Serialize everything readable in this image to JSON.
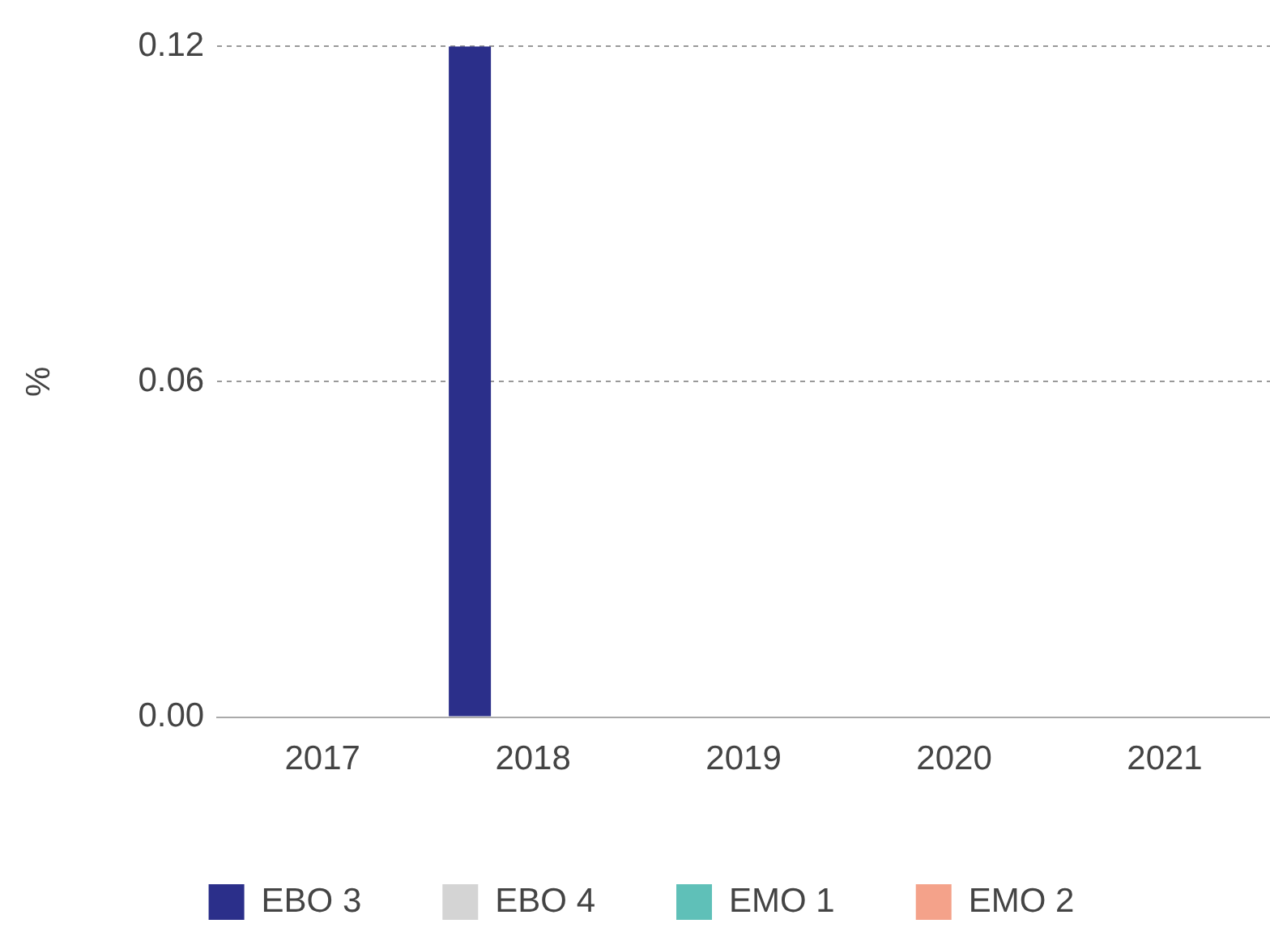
{
  "chart_data": {
    "type": "bar",
    "ylabel": "%",
    "categories": [
      "2017",
      "2018",
      "2019",
      "2020",
      "2021"
    ],
    "series": [
      {
        "name": "EBO 3",
        "color": "#2b2f8a",
        "values": [
          0,
          0.12,
          0,
          0,
          0
        ]
      },
      {
        "name": "EBO 4",
        "color": "#d4d4d4",
        "values": [
          0,
          0,
          0,
          0,
          0
        ]
      },
      {
        "name": "EMO 1",
        "color": "#5fc0b8",
        "values": [
          0,
          0,
          0,
          0,
          0
        ]
      },
      {
        "name": "EMO 2",
        "color": "#f4a28a",
        "values": [
          0,
          0,
          0,
          0,
          0
        ]
      }
    ],
    "ylim": [
      0,
      0.12
    ],
    "yticks": [
      {
        "value": 0,
        "label": "0.00"
      },
      0.06,
      0.12
    ],
    "grid": "y",
    "legend": "bottom"
  }
}
